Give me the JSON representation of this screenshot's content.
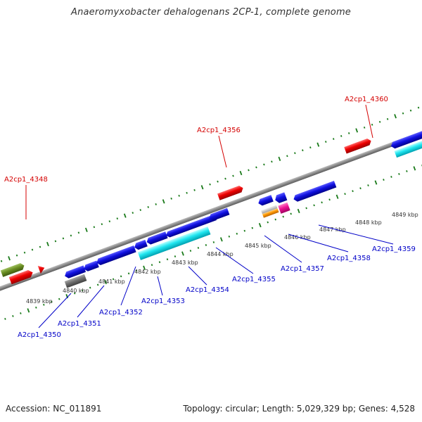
{
  "title": "Anaeromyxobacter dehalogenans 2CP-1, complete genome",
  "footer": {
    "accession": "Accession: NC_011891",
    "summary": "Topology: circular; Length: 5,029,329 bp; Genes: 4,528"
  },
  "colors": {
    "forward_label": "#d40000",
    "reverse_label": "#0000c8",
    "backbone": "#8c8c8c",
    "tick": "#1a7a1a"
  },
  "scale_ticks": [
    {
      "label": "4839 kbp"
    },
    {
      "label": "4840 kbp"
    },
    {
      "label": "4841 kbp"
    },
    {
      "label": "4842 kbp"
    },
    {
      "label": "4843 kbp"
    },
    {
      "label": "4844 kbp"
    },
    {
      "label": "4845 kbp"
    },
    {
      "label": "4846 kbp"
    },
    {
      "label": "4847 kbp"
    },
    {
      "label": "4848 kbp"
    },
    {
      "label": "4849 kbp"
    }
  ],
  "forward_gene_labels": [
    {
      "text": "A2cp1_4348"
    },
    {
      "text": "A2cp1_4356"
    },
    {
      "text": "A2cp1_4360"
    }
  ],
  "reverse_gene_labels": [
    {
      "text": "A2cp1_4350"
    },
    {
      "text": "A2cp1_4351"
    },
    {
      "text": "A2cp1_4352"
    },
    {
      "text": "A2cp1_4353"
    },
    {
      "text": "A2cp1_4354"
    },
    {
      "text": "A2cp1_4355"
    },
    {
      "text": "A2cp1_4357"
    },
    {
      "text": "A2cp1_4358"
    },
    {
      "text": "A2cp1_4359"
    }
  ]
}
